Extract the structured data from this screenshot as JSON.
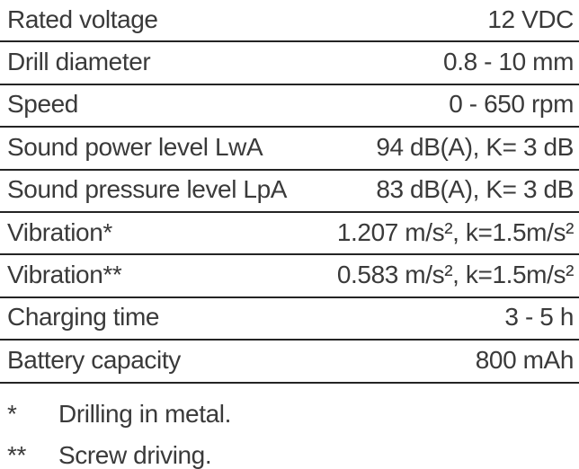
{
  "colors": {
    "text": "#3a3a3a",
    "rule": "#242424",
    "background": "#ffffff"
  },
  "spec_table": {
    "rows": [
      {
        "label": "Rated voltage",
        "value": "12 VDC"
      },
      {
        "label": "Drill diameter",
        "value": "0.8 - 10 mm"
      },
      {
        "label": "Speed",
        "value": "0 - 650 rpm"
      },
      {
        "label": "Sound power level LwA",
        "value": "94 dB(A), K= 3 dB"
      },
      {
        "label": "Sound pressure level LpA",
        "value": "83 dB(A), K= 3 dB"
      },
      {
        "label": "Vibration*",
        "value": "1.207 m/s², k=1.5m/s²"
      },
      {
        "label": "Vibration**",
        "value": "0.583 m/s², k=1.5m/s²"
      },
      {
        "label": "Charging time",
        "value": "3 - 5 h"
      },
      {
        "label": "Battery capacity",
        "value": "800 mAh"
      }
    ]
  },
  "footnotes": [
    {
      "marker": "*",
      "text": "Drilling in metal."
    },
    {
      "marker": "**",
      "text": "Screw driving."
    }
  ]
}
